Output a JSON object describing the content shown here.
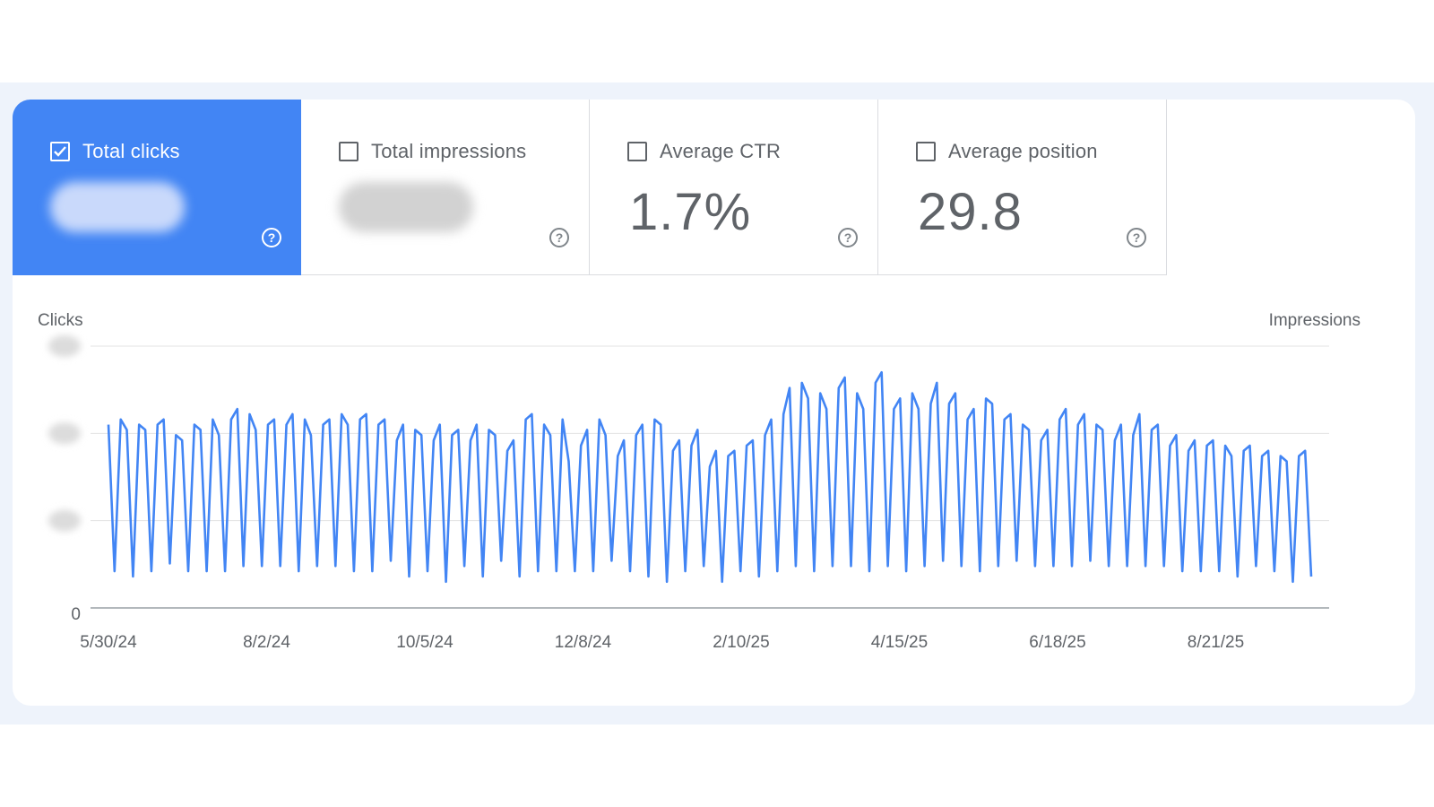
{
  "metrics": {
    "clicks": {
      "label": "Total clicks",
      "checked": true
    },
    "impressions": {
      "label": "Total impressions",
      "checked": false
    },
    "ctr": {
      "label": "Average CTR",
      "value": "1.7%",
      "checked": false
    },
    "position": {
      "label": "Average position",
      "value": "29.8",
      "checked": false
    },
    "help_glyph": "?"
  },
  "colors": {
    "accent": "#4285f4",
    "line": "#4285f4",
    "text": "#5f6368",
    "grid": "#e3e3e3"
  },
  "chart_data": {
    "type": "line",
    "title": "",
    "ylabel_left": "Clicks",
    "ylabel_right": "Impressions",
    "y_tick_zero": "0",
    "x_ticks": [
      "5/30/24",
      "8/2/24",
      "10/5/24",
      "12/8/24",
      "2/10/25",
      "4/15/25",
      "6/18/25",
      "8/21/25"
    ],
    "ylim": [
      0,
      100
    ],
    "grid": true,
    "series": [
      {
        "name": "Total clicks",
        "values": [
          70,
          14,
          72,
          68,
          12,
          70,
          68,
          14,
          70,
          72,
          17,
          66,
          64,
          14,
          70,
          68,
          14,
          72,
          66,
          14,
          72,
          76,
          16,
          74,
          68,
          16,
          70,
          72,
          16,
          70,
          74,
          14,
          72,
          66,
          16,
          70,
          72,
          16,
          74,
          70,
          14,
          72,
          74,
          14,
          70,
          72,
          18,
          64,
          70,
          12,
          68,
          66,
          14,
          64,
          70,
          10,
          66,
          68,
          16,
          64,
          70,
          12,
          68,
          66,
          18,
          60,
          64,
          12,
          72,
          74,
          14,
          70,
          66,
          14,
          72,
          56,
          14,
          62,
          68,
          14,
          72,
          66,
          18,
          58,
          64,
          14,
          66,
          70,
          12,
          72,
          70,
          10,
          60,
          64,
          14,
          62,
          68,
          16,
          54,
          60,
          10,
          58,
          60,
          14,
          62,
          64,
          12,
          66,
          72,
          14,
          74,
          84,
          16,
          86,
          80,
          14,
          82,
          76,
          16,
          84,
          88,
          16,
          82,
          76,
          14,
          86,
          90,
          16,
          76,
          80,
          14,
          82,
          76,
          16,
          78,
          86,
          18,
          78,
          82,
          16,
          72,
          76,
          14,
          80,
          78,
          16,
          72,
          74,
          18,
          70,
          68,
          16,
          64,
          68,
          16,
          72,
          76,
          16,
          70,
          74,
          18,
          70,
          68,
          16,
          64,
          70,
          16,
          66,
          74,
          16,
          68,
          70,
          16,
          62,
          66,
          14,
          60,
          64,
          14,
          62,
          64,
          14,
          62,
          58,
          12,
          60,
          62,
          16,
          58,
          60,
          14,
          58,
          56,
          10,
          58,
          60,
          12
        ]
      }
    ]
  }
}
